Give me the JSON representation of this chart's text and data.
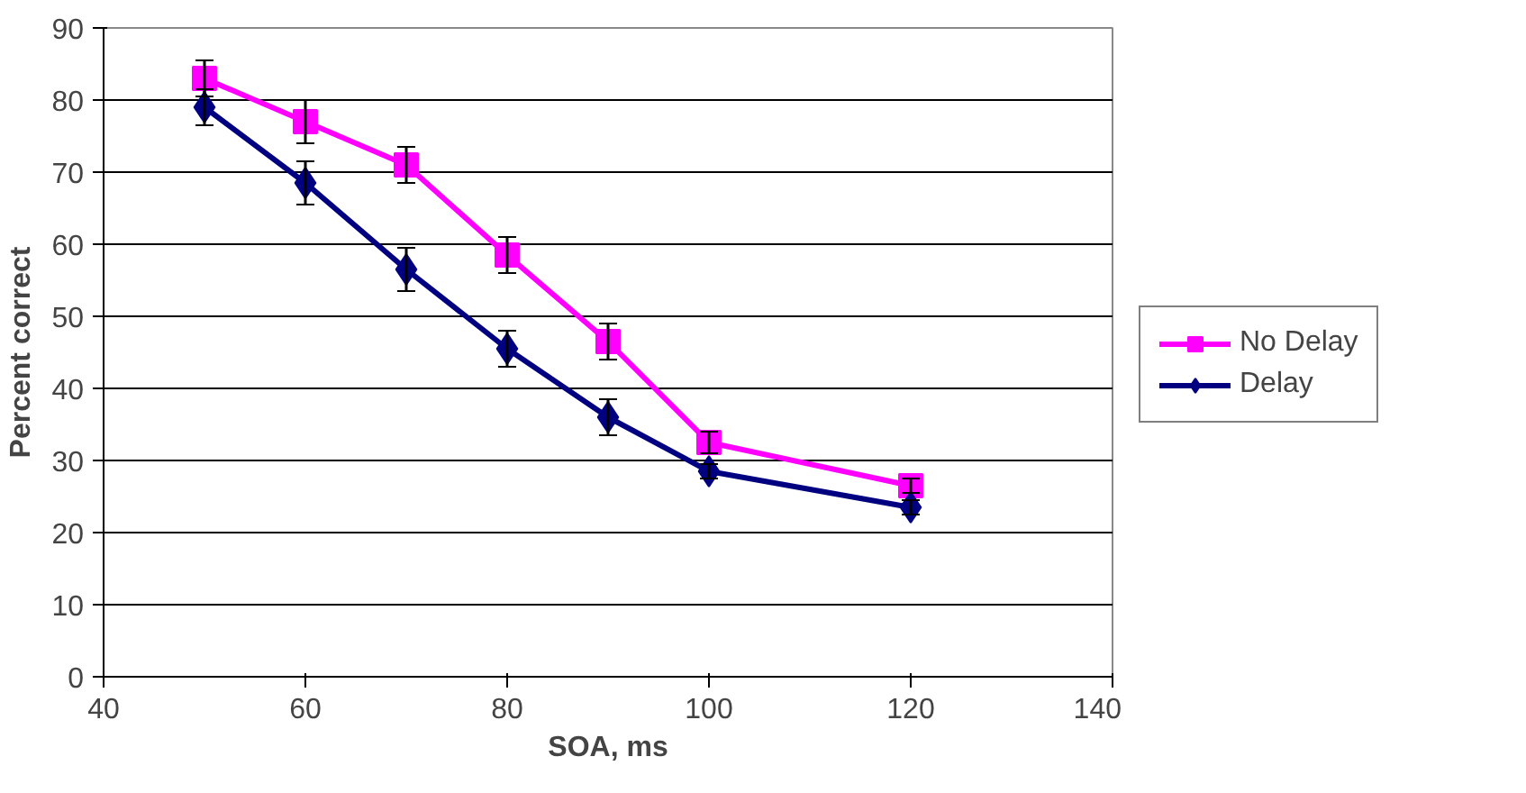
{
  "chart_data": {
    "type": "line",
    "xlabel": "SOA, ms",
    "ylabel": "Percent correct",
    "x": [
      50,
      60,
      70,
      80,
      90,
      100,
      120
    ],
    "xlim": [
      40,
      140
    ],
    "xticks": [
      40,
      60,
      80,
      100,
      120,
      140
    ],
    "ylim": [
      0,
      90
    ],
    "yticks": [
      0,
      10,
      20,
      30,
      40,
      50,
      60,
      70,
      80,
      90
    ],
    "grid": "y",
    "legend": "right",
    "series": [
      {
        "name": "No Delay",
        "color": "#ff00ff",
        "marker": "square",
        "values": [
          83,
          77,
          71,
          58.5,
          46.5,
          32.5,
          26.5
        ],
        "errors": [
          2.5,
          3,
          2.5,
          2.5,
          2.5,
          1.5,
          1
        ]
      },
      {
        "name": "Delay",
        "color": "#000080",
        "marker": "diamond",
        "values": [
          79,
          68.5,
          56.5,
          45.5,
          36,
          28.5,
          23.5
        ],
        "errors": [
          2.5,
          3,
          3,
          2.5,
          2.5,
          1,
          1
        ]
      }
    ]
  }
}
